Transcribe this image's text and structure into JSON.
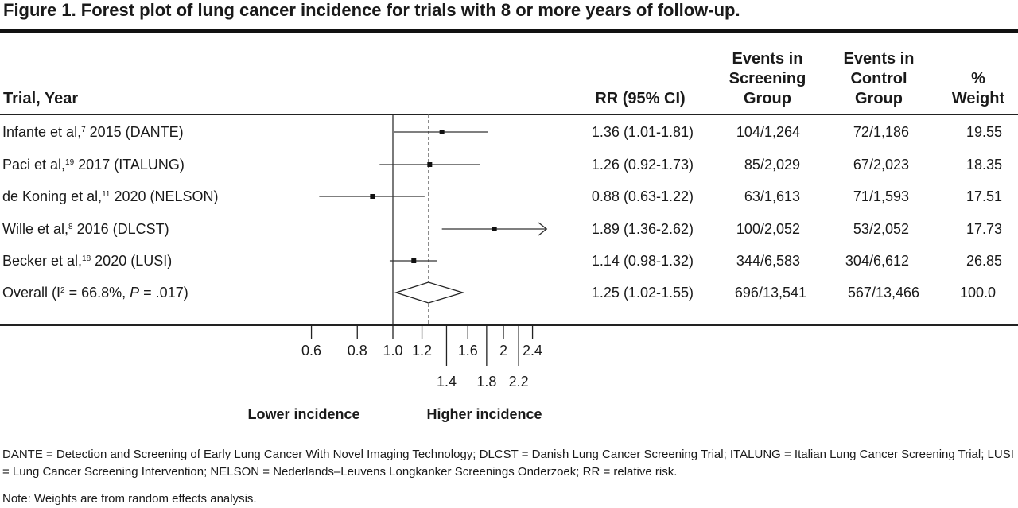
{
  "title": "Figure 1. Forest plot of lung cancer incidence for trials with 8 or more years of follow-up.",
  "headers": {
    "trial": "Trial, Year",
    "rr": "RR (95% CI)",
    "events_screening": "Events in\nScreening\nGroup",
    "events_control": "Events in\nControl\nGroup",
    "weight": "%\nWeight"
  },
  "chart_data": {
    "type": "forest",
    "x_scale": "log",
    "reference_line": 1.0,
    "overall_line": 1.25,
    "x_ticks_upper": [
      "0.6",
      "0.8",
      "1.0",
      "1.2",
      "1.6",
      "2",
      "2.4"
    ],
    "x_ticks_upper_values": [
      0.6,
      0.8,
      1.0,
      1.2,
      1.6,
      2.0,
      2.4
    ],
    "x_ticks_lower": [
      "1.4",
      "1.8",
      "2.2"
    ],
    "x_ticks_lower_values": [
      1.4,
      1.8,
      2.2
    ],
    "direction_labels": {
      "left": "Lower incidence",
      "right": "Higher incidence"
    },
    "rows": [
      {
        "trial": "Infante et al,",
        "ref": "7",
        "year_study": "2015 (DANTE)",
        "rr": 1.36,
        "lo": 1.01,
        "hi": 1.81,
        "rr_text": "1.36 (1.01-1.81)",
        "screening": "104/1,264",
        "control": "72/1,186",
        "weight": "19.55"
      },
      {
        "trial": "Paci et al,",
        "ref": "19",
        "year_study": "2017 (ITALUNG)",
        "rr": 1.26,
        "lo": 0.92,
        "hi": 1.73,
        "rr_text": "1.26 (0.92-1.73)",
        "screening": "85/2,029",
        "control": "67/2,023",
        "weight": "18.35"
      },
      {
        "trial": "de Koning et al,",
        "ref": "11",
        "year_study": "2020 (NELSON)",
        "rr": 0.88,
        "lo": 0.63,
        "hi": 1.22,
        "rr_text": "0.88 (0.63-1.22)",
        "screening": "63/1,613",
        "control": "71/1,593",
        "weight": "17.51"
      },
      {
        "trial": "Wille et al,",
        "ref": "8",
        "year_study": "2016 (DLCST)",
        "rr": 1.89,
        "lo": 1.36,
        "hi": 2.62,
        "arrow": true,
        "rr_text": "1.89 (1.36-2.62)",
        "screening": "100/2,052",
        "control": "53/2,052",
        "weight": "17.73"
      },
      {
        "trial": "Becker et al,",
        "ref": "18",
        "year_study": "2020 (LUSI)",
        "rr": 1.14,
        "lo": 0.98,
        "hi": 1.32,
        "rr_text": "1.14 (0.98-1.32)",
        "screening": "344/6,583",
        "control": "304/6,612",
        "weight": "26.85"
      }
    ],
    "overall": {
      "label_pre": "Overall (I",
      "label_sup": "2",
      "label_mid": " = 66.8%, ",
      "label_p": "P",
      "label_post": " = .017)",
      "rr": 1.25,
      "lo": 1.02,
      "hi": 1.55,
      "rr_text": "1.25 (1.02-1.55)",
      "screening": "696/13,541",
      "control": "567/13,466",
      "weight": "100.0"
    }
  },
  "footnotes": {
    "abbrev": "DANTE = Detection and Screening of Early Lung Cancer With Novel Imaging Technology; DLCST = Danish Lung Cancer Screening Trial; ITALUNG = Italian Lung Cancer Screening Trial; LUSI = Lung Cancer Screening Intervention; NELSON = Nederlands–Leuvens Longkanker Screenings Onderzoek; RR = relative risk.",
    "note": "Note: Weights are from random effects analysis."
  }
}
